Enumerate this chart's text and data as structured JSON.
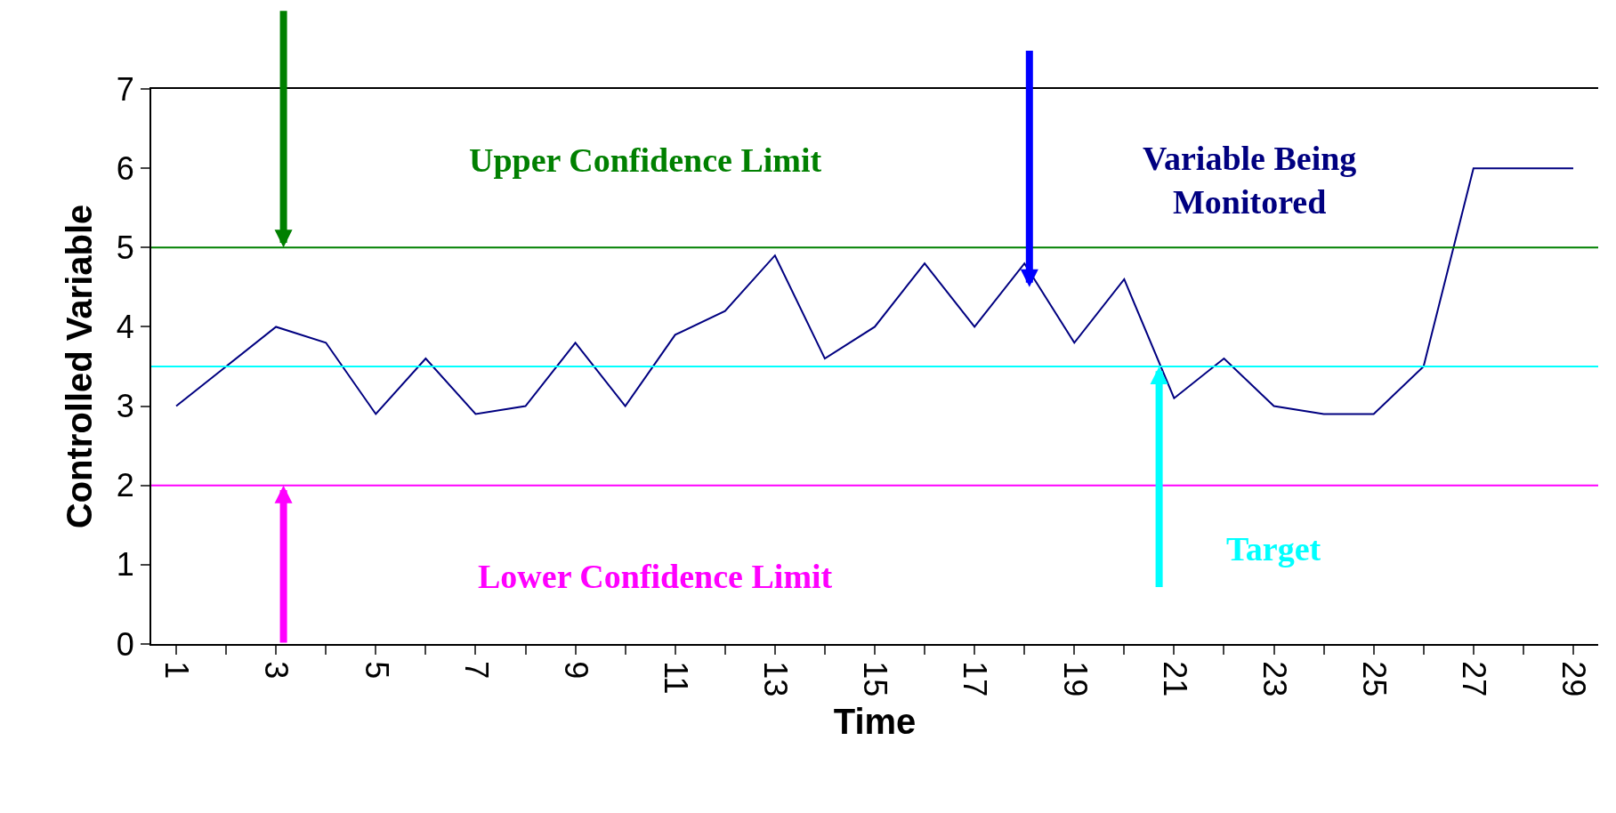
{
  "chart_data": {
    "type": "line",
    "xlabel": "Time",
    "ylabel": "Controlled Variable",
    "x": [
      1,
      2,
      3,
      4,
      5,
      6,
      7,
      8,
      9,
      10,
      11,
      12,
      13,
      14,
      15,
      16,
      17,
      18,
      19,
      20,
      21,
      22,
      23,
      24,
      25,
      26,
      27,
      28,
      29
    ],
    "series": [
      {
        "name": "Variable Being Monitored",
        "color": "#000080",
        "values": [
          3.0,
          3.5,
          4.0,
          3.8,
          2.9,
          3.6,
          2.9,
          3.0,
          3.8,
          3.0,
          3.9,
          4.2,
          4.9,
          3.6,
          4.0,
          4.8,
          4.0,
          4.8,
          3.8,
          4.6,
          3.1,
          3.6,
          3.0,
          2.9,
          2.9,
          3.5,
          6.0,
          6.0,
          6.0
        ]
      }
    ],
    "xlim": [
      0.5,
      29.5
    ],
    "xticks": [
      1,
      {
        "value": 2,
        "label": null
      },
      3,
      {
        "value": 4,
        "label": null
      },
      5,
      {
        "value": 6,
        "label": null
      },
      7,
      {
        "value": 8,
        "label": null
      },
      9,
      {
        "value": 10,
        "label": null
      },
      11,
      {
        "value": 12,
        "label": null
      },
      13,
      {
        "value": 14,
        "label": null
      },
      15,
      {
        "value": 16,
        "label": null
      },
      17,
      {
        "value": 18,
        "label": null
      },
      19,
      {
        "value": 20,
        "label": null
      },
      21,
      {
        "value": 22,
        "label": null
      },
      23,
      {
        "value": 24,
        "label": null
      },
      25,
      {
        "value": 26,
        "label": null
      },
      27,
      {
        "value": 28,
        "label": null
      },
      29
    ],
    "ylim": [
      0,
      7
    ],
    "yticks": [
      0,
      1,
      2,
      3,
      4,
      5,
      6,
      7
    ],
    "ref_lines": [
      {
        "axis": "y",
        "value": 5,
        "label": "Upper Confidence Limit",
        "color": "#008000"
      },
      {
        "axis": "y",
        "value": 3.5,
        "label": "Target",
        "color": "#00ffff"
      },
      {
        "axis": "y",
        "value": 2,
        "label": "Lower Confidence Limit",
        "color": "#ff00ff"
      }
    ],
    "grid": false,
    "legend": false,
    "marker": "none",
    "line_style": "solid"
  }
}
